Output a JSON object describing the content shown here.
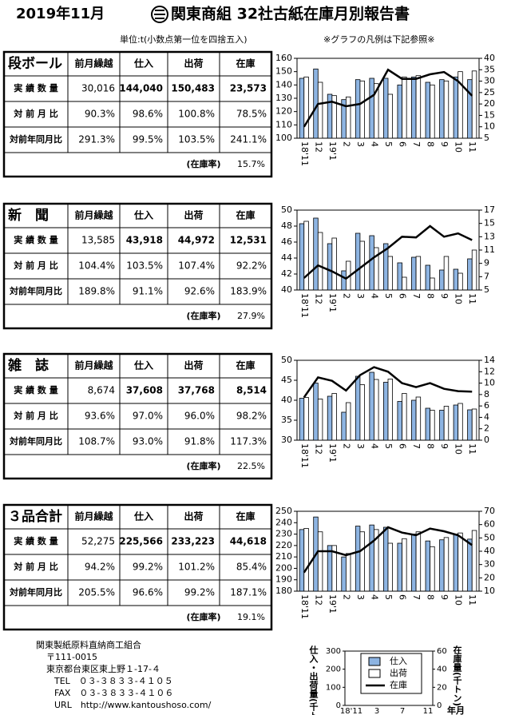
{
  "header": {
    "date": "2019年11月",
    "title": "関東商組 32社古紙在庫月別報告書",
    "unit_note": "単位:t(小数点第一位を四捨五入)",
    "legend_note": "※グラフの凡例は下記参照※"
  },
  "table_columns": [
    "前月繰越",
    "仕入",
    "出荷",
    "在庫"
  ],
  "row_labels": [
    "実 績 数 量",
    "対 前 月 比",
    "対前年同月比"
  ],
  "stock_rate_label": "(在庫率)",
  "sections": [
    {
      "name": "段ボール",
      "rows": [
        [
          "30,016",
          "144,040",
          "150,483",
          "23,573"
        ],
        [
          "90.3%",
          "98.6%",
          "100.8%",
          "78.5%"
        ],
        [
          "291.3%",
          "99.5%",
          "103.5%",
          "241.1%"
        ]
      ],
      "stock_rate": "15.7%"
    },
    {
      "name": "新　聞",
      "rows": [
        [
          "13,585",
          "43,918",
          "44,972",
          "12,531"
        ],
        [
          "104.4%",
          "103.5%",
          "107.4%",
          "92.2%"
        ],
        [
          "189.8%",
          "91.1%",
          "92.6%",
          "183.9%"
        ]
      ],
      "stock_rate": "27.9%"
    },
    {
      "name": "雑　誌",
      "rows": [
        [
          "8,674",
          "37,608",
          "37,768",
          "8,514"
        ],
        [
          "93.6%",
          "97.0%",
          "96.0%",
          "98.2%"
        ],
        [
          "108.7%",
          "93.0%",
          "91.8%",
          "117.3%"
        ]
      ],
      "stock_rate": "22.5%"
    },
    {
      "name": "３品合計",
      "rows": [
        [
          "52,275",
          "225,566",
          "233,223",
          "44,618"
        ],
        [
          "94.2%",
          "99.2%",
          "101.2%",
          "85.4%"
        ],
        [
          "205.5%",
          "96.6%",
          "99.2%",
          "187.1%"
        ]
      ],
      "stock_rate": "19.1%"
    }
  ],
  "chart_data": [
    {
      "type": "bar-line",
      "categories": [
        "18'11",
        "12",
        "19'1",
        "2",
        "3",
        "4",
        "5",
        "6",
        "7",
        "8",
        "9",
        "10",
        "11"
      ],
      "ylim": [
        100,
        160
      ],
      "yticks": [
        100,
        110,
        120,
        130,
        140,
        150,
        160
      ],
      "y2lim": [
        5,
        40
      ],
      "y2ticks": [
        5,
        10,
        15,
        20,
        25,
        30,
        35,
        40
      ],
      "series": [
        {
          "name": "仕入",
          "color": "#8db4e2",
          "values": [
            145,
            152,
            133,
            129,
            144,
            145,
            145,
            140,
            146,
            142,
            144,
            146,
            144
          ]
        },
        {
          "name": "出荷",
          "color": "#ffffff",
          "values": [
            146,
            142,
            132,
            131,
            143,
            141,
            133,
            146,
            147,
            140,
            143,
            150,
            150.5
          ]
        },
        {
          "name": "在庫",
          "color": "#000000",
          "axis": "y2",
          "values": [
            10,
            20,
            21,
            19,
            20,
            24,
            35,
            31,
            31,
            33,
            34,
            30,
            23.6
          ]
        }
      ]
    },
    {
      "type": "bar-line",
      "categories": [
        "18'11",
        "12",
        "19'1",
        "2",
        "3",
        "4",
        "5",
        "6",
        "7",
        "8",
        "9",
        "10",
        "11"
      ],
      "ylim": [
        40,
        50
      ],
      "yticks": [
        40,
        42,
        44,
        46,
        48,
        50
      ],
      "y2lim": [
        5,
        17
      ],
      "y2ticks": [
        5,
        7,
        9,
        11,
        13,
        15,
        17
      ],
      "series": [
        {
          "name": "仕入",
          "color": "#8db4e2",
          "values": [
            48.3,
            49.0,
            45.8,
            42.4,
            47.1,
            46.8,
            45.8,
            43.4,
            44.1,
            43.1,
            42.5,
            42.6,
            43.9
          ]
        },
        {
          "name": "出荷",
          "color": "#ffffff",
          "values": [
            48.6,
            47.2,
            46.5,
            43.6,
            46.1,
            45.3,
            44.2,
            41.6,
            44.2,
            41.5,
            44.2,
            42.1,
            45.0
          ]
        },
        {
          "name": "在庫",
          "color": "#000000",
          "axis": "y2",
          "values": [
            6.8,
            8.7,
            7.8,
            6.7,
            8.3,
            9.9,
            11.3,
            13.0,
            12.9,
            14.6,
            13.0,
            13.5,
            12.5
          ]
        }
      ]
    },
    {
      "type": "bar-line",
      "categories": [
        "18'11",
        "12",
        "19'1",
        "2",
        "3",
        "4",
        "5",
        "6",
        "7",
        "8",
        "9",
        "10",
        "11"
      ],
      "ylim": [
        30,
        50
      ],
      "yticks": [
        30,
        35,
        40,
        45,
        50
      ],
      "y2lim": [
        0,
        14
      ],
      "y2ticks": [
        0,
        2,
        4,
        6,
        8,
        10,
        12,
        14
      ],
      "series": [
        {
          "name": "仕入",
          "color": "#8db4e2",
          "values": [
            40.5,
            44.3,
            41.0,
            37.0,
            46.0,
            47.0,
            44.5,
            39.7,
            40.0,
            38.0,
            37.5,
            38.8,
            37.6
          ]
        },
        {
          "name": "出荷",
          "color": "#ffffff",
          "values": [
            40.7,
            40.3,
            41.7,
            39.4,
            43.9,
            45.2,
            45.3,
            41.7,
            40.8,
            37.5,
            38.5,
            39.2,
            37.8
          ]
        },
        {
          "name": "在庫",
          "color": "#000000",
          "axis": "y2",
          "values": [
            7.5,
            11.0,
            10.4,
            8.7,
            11.4,
            12.8,
            12.0,
            10.0,
            9.3,
            10.0,
            9.0,
            8.6,
            8.5
          ]
        }
      ]
    },
    {
      "type": "bar-line",
      "categories": [
        "18'11",
        "12",
        "19'1",
        "2",
        "3",
        "4",
        "5",
        "6",
        "7",
        "8",
        "9",
        "10",
        "11"
      ],
      "ylim": [
        180,
        250
      ],
      "yticks": [
        180,
        190,
        200,
        210,
        220,
        230,
        240,
        250
      ],
      "y2lim": [
        10,
        70
      ],
      "y2ticks": [
        10,
        20,
        30,
        40,
        50,
        60,
        70
      ],
      "series": [
        {
          "name": "仕入",
          "color": "#8db4e2",
          "values": [
            234,
            245,
            220,
            210,
            237,
            238,
            236,
            222,
            230,
            224,
            225,
            230,
            225.6
          ]
        },
        {
          "name": "出荷",
          "color": "#ffffff",
          "values": [
            235,
            232,
            220,
            213,
            232,
            234,
            222,
            226,
            232,
            219,
            227,
            231,
            233.2
          ]
        },
        {
          "name": "在庫",
          "color": "#000000",
          "axis": "y2",
          "values": [
            24,
            40,
            40,
            37,
            40,
            48,
            58,
            54,
            52,
            57,
            55,
            52,
            44.6
          ]
        }
      ]
    }
  ],
  "legend_sample": {
    "y_label": "仕入・出荷量(千トン)",
    "y2_label": "在庫量(千トン)",
    "x_labels": [
      "18'11",
      "3",
      "7",
      "11"
    ],
    "x_unit": "年月",
    "ylim": [
      0,
      300
    ],
    "yticks": [
      0,
      100,
      200,
      300
    ],
    "y2lim": [
      0,
      60
    ],
    "y2ticks": [
      0,
      20,
      40,
      60
    ],
    "entries": [
      {
        "name": "仕入",
        "color": "#8db4e2"
      },
      {
        "name": "出荷",
        "color": "#ffffff"
      },
      {
        "name": "在庫",
        "color": "#000000"
      }
    ]
  },
  "footer": {
    "lines": [
      "関東製紙原料直納商工組合",
      "〒111-0015",
      "東京都台東区東上野１-17-４",
      "TEL　０３-３８３３-４１０５",
      "FAX　０３-３８３３-４１０６",
      "URL　http://www.kantoushoso.com/"
    ]
  }
}
